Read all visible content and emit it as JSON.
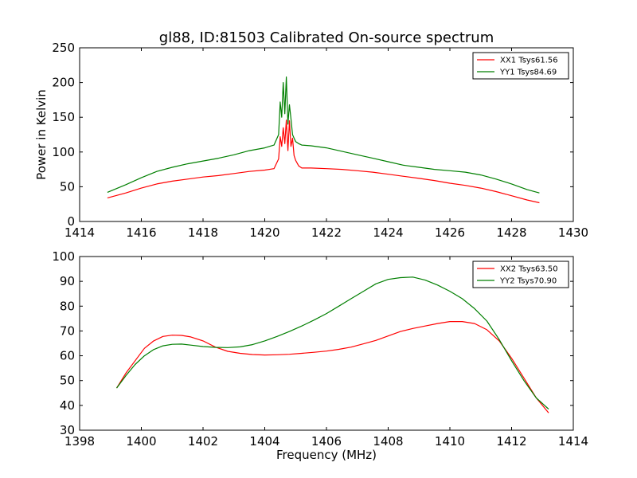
{
  "figure": {
    "title": "gl88, ID:81503 Calibrated On-source spectrum"
  },
  "colors": {
    "red": "#ff0000",
    "green": "#007f00"
  },
  "chart_data": [
    {
      "type": "line",
      "title": "gl88, ID:81503 Calibrated On-source spectrum",
      "xlabel": "",
      "ylabel": "Power in Kelvin",
      "xlim": [
        1414,
        1430
      ],
      "ylim": [
        0,
        250
      ],
      "xticks": [
        1414,
        1416,
        1418,
        1420,
        1422,
        1424,
        1426,
        1428,
        1430
      ],
      "yticks": [
        0,
        50,
        100,
        150,
        200,
        250
      ],
      "legend_position": "top-right",
      "grid": false,
      "series": [
        {
          "name": "XX1 Tsys61.56",
          "color": "#ff0000",
          "x": [
            1414.9,
            1415.5,
            1416.0,
            1416.5,
            1417.0,
            1417.5,
            1418.0,
            1418.5,
            1419.0,
            1419.5,
            1420.0,
            1420.3,
            1420.45,
            1420.5,
            1420.55,
            1420.6,
            1420.65,
            1420.7,
            1420.75,
            1420.8,
            1420.85,
            1420.9,
            1420.95,
            1421.0,
            1421.1,
            1421.2,
            1421.5,
            1422.0,
            1422.5,
            1423.0,
            1423.5,
            1424.0,
            1424.5,
            1425.0,
            1425.5,
            1426.0,
            1426.5,
            1427.0,
            1427.5,
            1428.0,
            1428.5,
            1428.9
          ],
          "y": [
            34,
            41,
            48,
            54,
            58,
            61,
            64,
            66,
            69,
            72,
            74,
            76,
            90,
            122,
            108,
            135,
            112,
            146,
            102,
            145,
            108,
            120,
            95,
            88,
            80,
            77,
            77,
            76,
            75,
            73,
            71,
            68,
            65,
            62,
            59,
            55,
            52,
            48,
            43,
            37,
            31,
            27
          ]
        },
        {
          "name": "YY1 Tsys84.69",
          "color": "#007f00",
          "x": [
            1414.9,
            1415.5,
            1416.0,
            1416.5,
            1417.0,
            1417.5,
            1418.0,
            1418.5,
            1419.0,
            1419.5,
            1420.0,
            1420.3,
            1420.45,
            1420.5,
            1420.55,
            1420.6,
            1420.65,
            1420.7,
            1420.75,
            1420.8,
            1420.85,
            1420.9,
            1420.95,
            1421.0,
            1421.1,
            1421.2,
            1421.5,
            1422.0,
            1422.5,
            1423.0,
            1423.5,
            1424.0,
            1424.5,
            1425.0,
            1425.5,
            1426.0,
            1426.5,
            1427.0,
            1427.5,
            1428.0,
            1428.5,
            1428.9
          ],
          "y": [
            42,
            53,
            63,
            72,
            78,
            83,
            87,
            91,
            96,
            102,
            106,
            110,
            125,
            172,
            150,
            200,
            155,
            208,
            140,
            168,
            148,
            125,
            120,
            115,
            112,
            110,
            109,
            106,
            101,
            96,
            91,
            86,
            81,
            78,
            75,
            73,
            71,
            67,
            61,
            54,
            46,
            41
          ]
        }
      ]
    },
    {
      "type": "line",
      "title": "",
      "xlabel": "Frequency (MHz)",
      "ylabel": "",
      "xlim": [
        1398,
        1414
      ],
      "ylim": [
        30,
        100
      ],
      "xticks": [
        1398,
        1400,
        1402,
        1404,
        1406,
        1408,
        1410,
        1412,
        1414
      ],
      "yticks": [
        30,
        40,
        50,
        60,
        70,
        80,
        90,
        100
      ],
      "legend_position": "top-right",
      "grid": false,
      "series": [
        {
          "name": "XX2 Tsys63.50",
          "color": "#ff0000",
          "x": [
            1399.2,
            1399.5,
            1399.8,
            1400.1,
            1400.4,
            1400.7,
            1401.0,
            1401.3,
            1401.6,
            1402.0,
            1402.4,
            1402.8,
            1403.2,
            1403.6,
            1404.0,
            1404.4,
            1404.8,
            1405.2,
            1405.6,
            1406.0,
            1406.4,
            1406.8,
            1407.2,
            1407.6,
            1408.0,
            1408.4,
            1408.8,
            1409.2,
            1409.6,
            1410.0,
            1410.4,
            1410.8,
            1411.2,
            1411.6,
            1412.0,
            1412.4,
            1412.8,
            1413.2
          ],
          "y": [
            47,
            53,
            58,
            63,
            66,
            67.8,
            68.3,
            68.2,
            67.6,
            66,
            63.5,
            61.8,
            61,
            60.5,
            60.3,
            60.4,
            60.6,
            61,
            61.4,
            61.9,
            62.6,
            63.5,
            64.8,
            66.2,
            68,
            69.8,
            71,
            72,
            73,
            73.8,
            73.8,
            73,
            70.5,
            66,
            59,
            51,
            43,
            37
          ]
        },
        {
          "name": "YY2 Tsys70.90",
          "color": "#007f00",
          "x": [
            1399.2,
            1399.5,
            1399.8,
            1400.1,
            1400.4,
            1400.7,
            1401.0,
            1401.3,
            1401.6,
            1402.0,
            1402.4,
            1402.8,
            1403.2,
            1403.6,
            1404.0,
            1404.4,
            1404.8,
            1405.2,
            1405.6,
            1406.0,
            1406.4,
            1406.8,
            1407.2,
            1407.6,
            1408.0,
            1408.4,
            1408.8,
            1409.2,
            1409.6,
            1410.0,
            1410.4,
            1410.8,
            1411.2,
            1411.6,
            1412.0,
            1412.4,
            1412.8,
            1413.2
          ],
          "y": [
            47,
            52,
            56.5,
            60,
            62.5,
            64,
            64.6,
            64.7,
            64.3,
            63.7,
            63.4,
            63.3,
            63.6,
            64.5,
            66,
            67.8,
            69.8,
            72,
            74.4,
            77,
            80,
            83,
            86,
            89,
            90.8,
            91.5,
            91.7,
            90.5,
            88.5,
            86,
            83,
            79,
            74,
            66.5,
            58,
            50,
            43,
            38.5
          ]
        }
      ]
    }
  ]
}
